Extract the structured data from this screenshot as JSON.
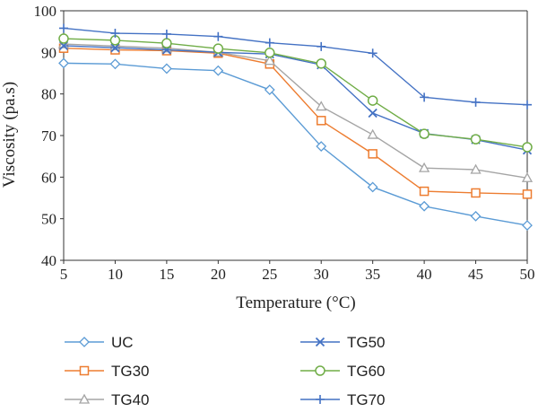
{
  "chart_data": {
    "type": "line",
    "title": "",
    "xlabel": "Temperature (°C)",
    "ylabel": "Viscosity (pa.s)",
    "x": [
      5,
      10,
      15,
      20,
      25,
      30,
      35,
      40,
      45,
      50
    ],
    "x_ticks": [
      "5",
      "10",
      "15",
      "20",
      "25",
      "30",
      "35",
      "40",
      "45",
      "50"
    ],
    "y_ticks": [
      "40",
      "50",
      "60",
      "70",
      "80",
      "90",
      "100"
    ],
    "xlim": [
      5,
      50
    ],
    "ylim": [
      40,
      100
    ],
    "grid": false,
    "legend_position": "bottom",
    "series": [
      {
        "name": "UC",
        "marker": "diamond",
        "color": "#5B9BD5",
        "values": [
          87.4,
          87.2,
          86.1,
          85.6,
          81.0,
          67.4,
          57.6,
          53.0,
          50.6,
          48.4
        ]
      },
      {
        "name": "TG30",
        "marker": "square",
        "color": "#ED7D31",
        "values": [
          91.0,
          90.6,
          90.4,
          89.8,
          87.2,
          73.6,
          65.6,
          56.6,
          56.2,
          55.9
        ]
      },
      {
        "name": "TG40",
        "marker": "triangle",
        "color": "#A5A5A5",
        "values": [
          92.0,
          91.5,
          91.0,
          90.0,
          88.0,
          77.0,
          70.2,
          62.2,
          61.8,
          59.8
        ]
      },
      {
        "name": "TG50",
        "marker": "x",
        "color": "#4472C4",
        "values": [
          91.6,
          91.1,
          90.6,
          90.0,
          89.6,
          87.0,
          75.4,
          70.5,
          69.0,
          66.5
        ]
      },
      {
        "name": "TG60",
        "marker": "circle",
        "color": "#70AD47",
        "values": [
          93.3,
          92.9,
          92.2,
          90.9,
          89.9,
          87.3,
          78.4,
          70.4,
          69.1,
          67.2
        ]
      },
      {
        "name": "TG70",
        "marker": "plus",
        "color": "#4472C4",
        "values": [
          95.8,
          94.6,
          94.4,
          93.8,
          92.3,
          91.4,
          89.8,
          79.2,
          78.0,
          77.4
        ]
      }
    ]
  }
}
